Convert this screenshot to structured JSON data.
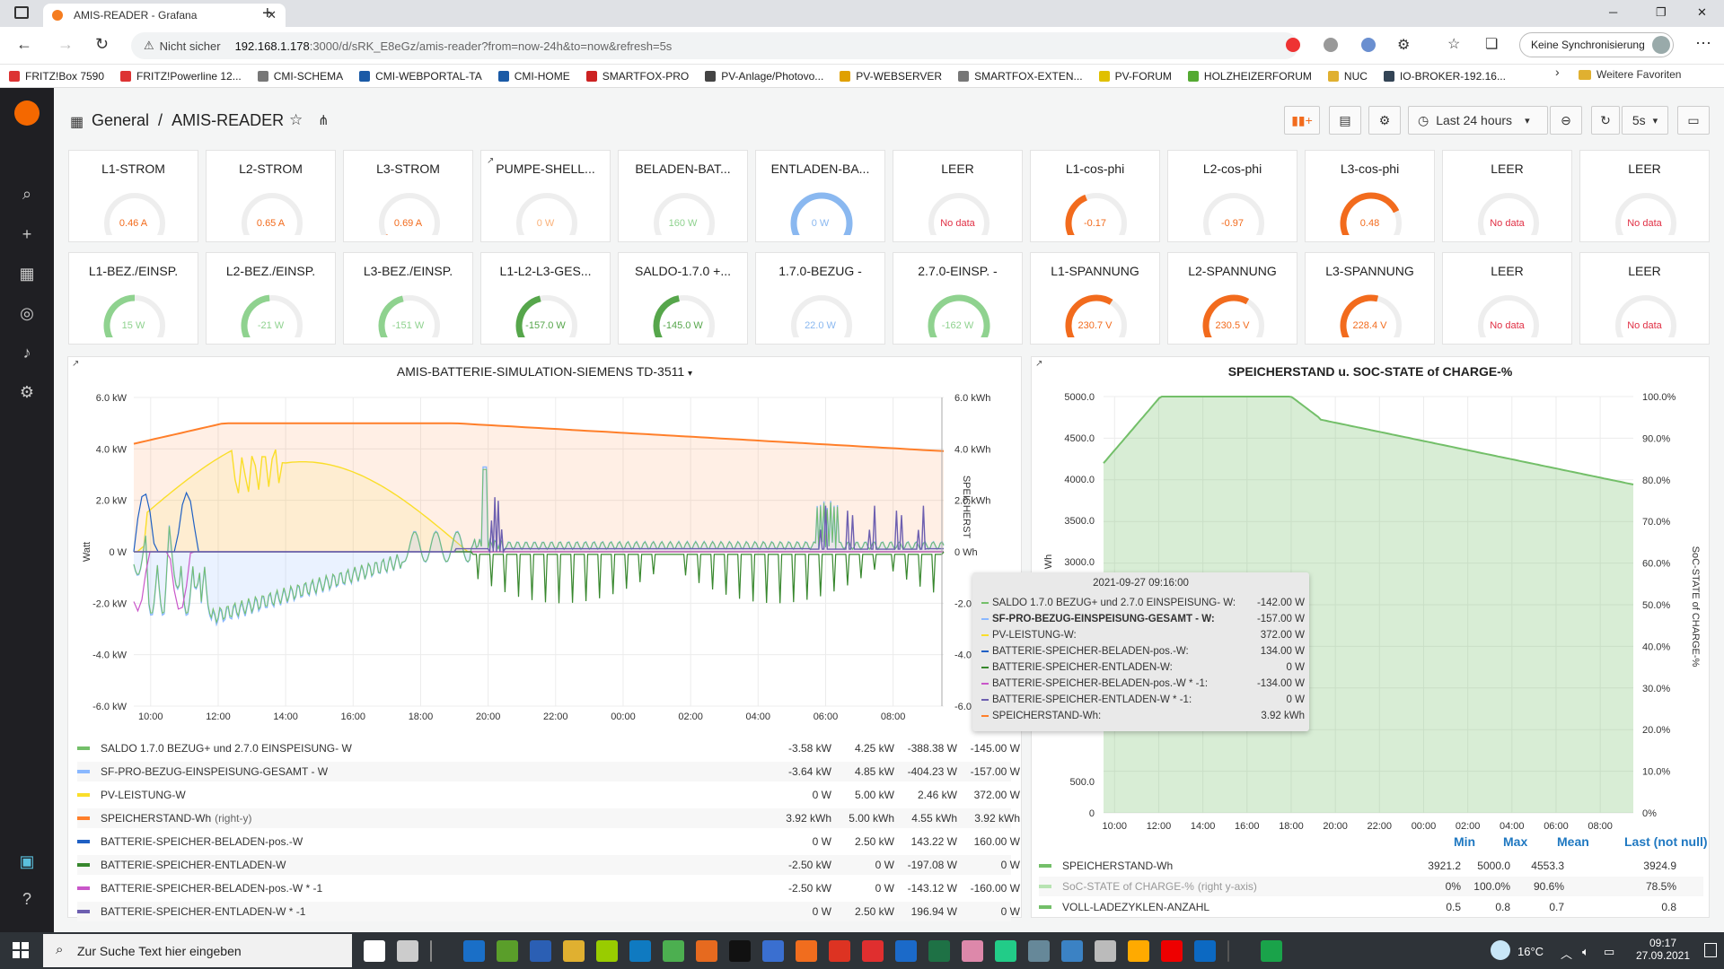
{
  "browser": {
    "tab_title": "AMIS-READER - Grafana",
    "insecure_label": "Nicht sicher",
    "url_host": "192.168.1.178",
    "url_path": ":3000/d/sRK_E8eGz/amis-reader?from=now-24h&to=now&refresh=5s",
    "sync_label": "Keine Synchronisierung",
    "more_favorites": "Weitere Favoriten"
  },
  "bookmarks": [
    {
      "label": "FRITZ!Box 7590",
      "color": "#d33"
    },
    {
      "label": "FRITZ!Powerline 12...",
      "color": "#d33"
    },
    {
      "label": "CMI-SCHEMA",
      "color": "#777"
    },
    {
      "label": "CMI-WEBPORTAL-TA",
      "color": "#1a5aa6"
    },
    {
      "label": "CMI-HOME",
      "color": "#1a5aa6"
    },
    {
      "label": "SMARTFOX-PRO",
      "color": "#c22"
    },
    {
      "label": "PV-Anlage/Photovo...",
      "color": "#444"
    },
    {
      "label": "PV-WEBSERVER",
      "color": "#e0a000"
    },
    {
      "label": "SMARTFOX-EXTEN...",
      "color": "#777"
    },
    {
      "label": "PV-FORUM",
      "color": "#e0c000"
    },
    {
      "label": "HOLZHEIZERFORUM",
      "color": "#5a3"
    },
    {
      "label": "NUC",
      "color": "#e0b030"
    },
    {
      "label": "IO-BROKER-192.16...",
      "color": "#345"
    }
  ],
  "dashboard": {
    "folder": "General",
    "separator": "/",
    "title": "AMIS-READER",
    "time_range": "Last 24 hours",
    "refresh": "5s"
  },
  "gauges_row1": [
    {
      "title": "L1-STROM",
      "value": "0.46 A",
      "color": "#f26b1d",
      "fraction": 0.05
    },
    {
      "title": "L2-STROM",
      "value": "0.65 A",
      "color": "#f26b1d",
      "fraction": 0.06
    },
    {
      "title": "L3-STROM",
      "value": "0.69 A",
      "color": "#f26b1d",
      "fraction": 0.07
    },
    {
      "title": "PUMPE-SHELL...",
      "value": "0 W",
      "color": "#fab27a",
      "fraction": 0
    },
    {
      "title": "BELADEN-BAT...",
      "value": "160 W",
      "color": "#8fd28f",
      "fraction": 0
    },
    {
      "title": "ENTLADEN-BA...",
      "value": "0 W",
      "color": "#8ab8f0",
      "fraction": 1
    },
    {
      "title": "LEER",
      "value": "No data",
      "color": "#f26b1d",
      "fraction": 0
    },
    {
      "title": "L1-cos-phi",
      "value": "-0.17",
      "color": "#f26b1d",
      "fraction": 0.42
    },
    {
      "title": "L2-cos-phi",
      "value": "-0.97",
      "color": "#f26b1d",
      "fraction": 0.02
    },
    {
      "title": "L3-cos-phi",
      "value": "0.48",
      "color": "#f26b1d",
      "fraction": 0.74
    },
    {
      "title": "LEER",
      "value": "No data",
      "color": "#f26b1d",
      "fraction": 0
    },
    {
      "title": "LEER",
      "value": "No data",
      "color": "#f26b1d",
      "fraction": 0
    }
  ],
  "gauges_row2": [
    {
      "title": "L1-BEZ./EINSP.",
      "value": "15 W",
      "color": "#8fd28f",
      "fraction": 0.5
    },
    {
      "title": "L2-BEZ./EINSP.",
      "value": "-21 W",
      "color": "#8fd28f",
      "fraction": 0.48
    },
    {
      "title": "L3-BEZ./EINSP.",
      "value": "-151 W",
      "color": "#8fd28f",
      "fraction": 0.45
    },
    {
      "title": "L1-L2-L3-GES...",
      "value": "-157.0 W",
      "color": "#56a64b",
      "fraction": 0.45
    },
    {
      "title": "SALDO-1.7.0 +...",
      "value": "-145.0 W",
      "color": "#56a64b",
      "fraction": 0.46
    },
    {
      "title": "1.7.0-BEZUG -",
      "value": "22.0 W",
      "color": "#8ab8f0",
      "fraction": 0.02
    },
    {
      "title": "2.7.0-EINSP. -",
      "value": "-162 W",
      "color": "#8fd28f",
      "fraction": 0.96
    },
    {
      "title": "L1-SPANNUNG",
      "value": "230.7 V",
      "color": "#f26b1d",
      "fraction": 0.62
    },
    {
      "title": "L2-SPANNUNG",
      "value": "230.5 V",
      "color": "#f26b1d",
      "fraction": 0.61
    },
    {
      "title": "L3-SPANNUNG",
      "value": "228.4 V",
      "color": "#f26b1d",
      "fraction": 0.55
    },
    {
      "title": "LEER",
      "value": "No data",
      "color": "#f26b1d",
      "fraction": 0
    },
    {
      "title": "LEER",
      "value": "No data",
      "color": "#f26b1d",
      "fraction": 0
    }
  ],
  "main_chart": {
    "title": "AMIS-BATTERIE-SIMULATION-SIEMENS TD-3511",
    "y_left_label": "Watt",
    "y_right_label": "SPEICHERST",
    "y_left_ticks": [
      "6.0 kW",
      "4.0 kW",
      "2.0 kW",
      "0 W",
      "-2.0 kW",
      "-4.0 kW",
      "-6.0 kW"
    ],
    "y_right_ticks": [
      "6.0 kWh",
      "4.0 kWh",
      "2.0 kWh",
      "0 Wh",
      "-2.0",
      "-4.0",
      "-6.0"
    ],
    "x_ticks": [
      "10:00",
      "12:00",
      "14:00",
      "16:00",
      "18:00",
      "20:00",
      "22:00",
      "00:00",
      "02:00",
      "04:00",
      "06:00",
      "08:00"
    ],
    "legend": [
      {
        "name": "SALDO 1.7.0 BEZUG+ und 2.7.0 EINSPEISUNG- W",
        "color": "#73bf69",
        "min": "-3.58 kW",
        "max": "4.25 kW",
        "mean": "-388.38 W",
        "last": "-145.00 W"
      },
      {
        "name": "SF-PRO-BEZUG-EINSPEISUNG-GESAMT - W",
        "color": "#8ab8ff",
        "min": "-3.64 kW",
        "max": "4.85 kW",
        "mean": "-404.23 W",
        "last": "-157.00 W"
      },
      {
        "name": "PV-LEISTUNG-W",
        "color": "#fade2a",
        "min": "0 W",
        "max": "5.00 kW",
        "mean": "2.46 kW",
        "last": "372.00 W"
      },
      {
        "name": "SPEICHERSTAND-Wh",
        "suffix": "(right-y)",
        "color": "#ff7f2a",
        "min": "3.92 kWh",
        "max": "5.00 kWh",
        "mean": "4.55 kWh",
        "last": "3.92 kWh"
      },
      {
        "name": "BATTERIE-SPEICHER-BELADEN-pos.-W",
        "color": "#1f60c4",
        "min": "0 W",
        "max": "2.50 kW",
        "mean": "143.22 W",
        "last": "160.00 W"
      },
      {
        "name": "BATTERIE-SPEICHER-ENTLADEN-W",
        "color": "#37872d",
        "min": "-2.50 kW",
        "max": "0 W",
        "mean": "-197.08 W",
        "last": "0 W"
      },
      {
        "name": "BATTERIE-SPEICHER-BELADEN-pos.-W * -1",
        "color": "#c957c9",
        "min": "-2.50 kW",
        "max": "0 W",
        "mean": "-143.12 W",
        "last": "-160.00 W"
      },
      {
        "name": "BATTERIE-SPEICHER-ENTLADEN-W * -1",
        "color": "#6d5fb0",
        "min": "0 W",
        "max": "2.50 kW",
        "mean": "196.94 W",
        "last": "0 W"
      }
    ]
  },
  "tooltip": {
    "time": "2021-09-27 09:16:00",
    "rows": [
      {
        "label": "SALDO 1.7.0 BEZUG+ und 2.7.0 EINSPEISUNG- W:",
        "value": "-142.00 W",
        "color": "#73bf69"
      },
      {
        "label": "SF-PRO-BEZUG-EINSPEISUNG-GESAMT - W:",
        "value": "-157.00 W",
        "color": "#8ab8ff",
        "bold": true
      },
      {
        "label": "PV-LEISTUNG-W:",
        "value": "372.00 W",
        "color": "#fade2a"
      },
      {
        "label": "BATTERIE-SPEICHER-BELADEN-pos.-W:",
        "value": "134.00 W",
        "color": "#1f60c4"
      },
      {
        "label": "BATTERIE-SPEICHER-ENTLADEN-W:",
        "value": "0 W",
        "color": "#37872d"
      },
      {
        "label": "BATTERIE-SPEICHER-BELADEN-pos.-W * -1:",
        "value": "-134.00 W",
        "color": "#c957c9"
      },
      {
        "label": "BATTERIE-SPEICHER-ENTLADEN-W * -1:",
        "value": "0 W",
        "color": "#6d5fb0"
      },
      {
        "label": "SPEICHERSTAND-Wh:",
        "value": "3.92 kWh",
        "color": "#ff7f2a"
      }
    ]
  },
  "soc_chart": {
    "title": "SPEICHERSTAND u. SOC-STATE of CHARGE-%",
    "y_left_label": "Wh",
    "y_right_label": "SoC-STATE of CHARGE-%",
    "y_left_ticks": [
      "5000.0",
      "4500.0",
      "4000.0",
      "3500.0",
      "3000.0",
      "500.0",
      "0"
    ],
    "y_right_ticks": [
      "100.0%",
      "90.0%",
      "80.0%",
      "70.0%",
      "60.0%",
      "50.0%",
      "40.0%",
      "30.0%",
      "20.0%",
      "10.0%",
      "0%"
    ],
    "x_ticks": [
      "10:00",
      "12:00",
      "14:00",
      "16:00",
      "18:00",
      "20:00",
      "22:00",
      "00:00",
      "02:00",
      "04:00",
      "06:00",
      "08:00"
    ],
    "legend_headers": [
      "Min",
      "Max",
      "Mean",
      "Last (not null)"
    ],
    "legend": [
      {
        "name": "SPEICHERSTAND-Wh",
        "suffix": "",
        "color": "#73bf69",
        "min": "3921.2",
        "max": "5000.0",
        "mean": "4553.3",
        "last": "3924.9"
      },
      {
        "name": "SoC-STATE of CHARGE-%",
        "suffix": "(right y-axis)",
        "color": "#b7e3b2",
        "min": "0%",
        "max": "100.0%",
        "mean": "90.6%",
        "last": "78.5%",
        "dim": true
      },
      {
        "name": "VOLL-LADEZYKLEN-ANZAHL",
        "suffix": "",
        "color": "#73bf69",
        "min": "0.5",
        "max": "0.8",
        "mean": "0.7",
        "last": "0.8"
      }
    ]
  },
  "taskbar": {
    "search_placeholder": "Zur Suche Text hier eingeben",
    "temperature": "16°C",
    "time": "09:17",
    "date": "27.09.2021"
  }
}
